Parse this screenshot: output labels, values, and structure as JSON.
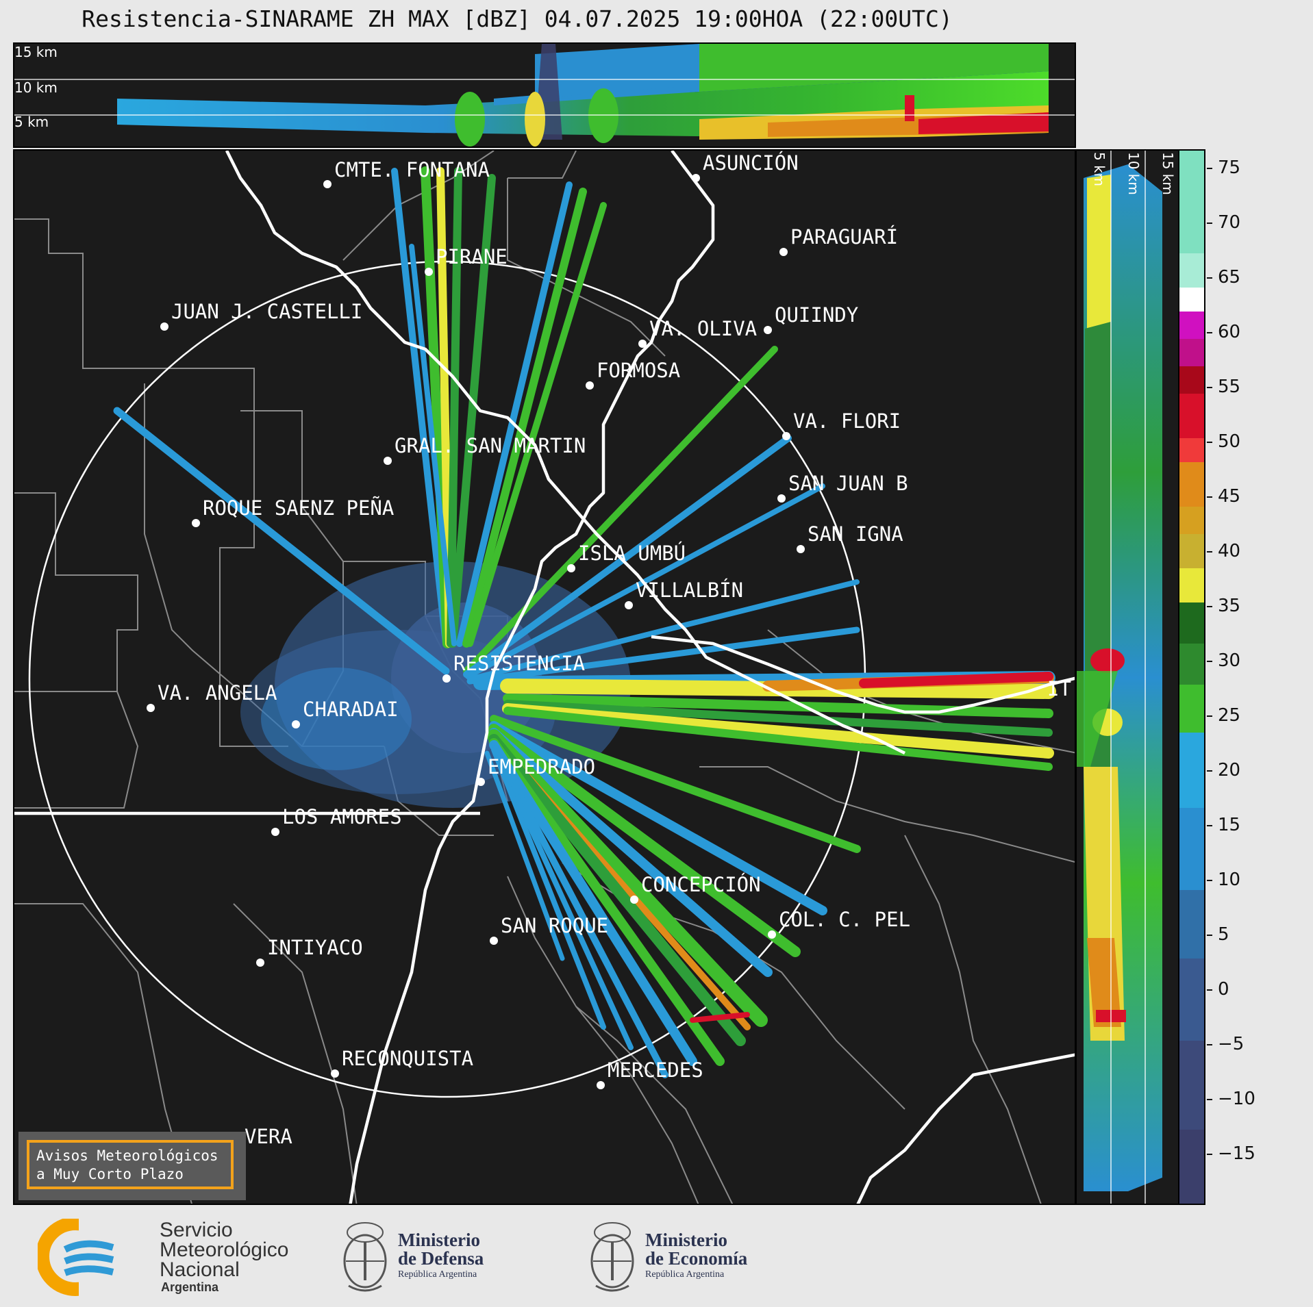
{
  "title": "Resistencia-SINARAME ZH MAX [dBZ] 04.07.2025 19:00HOA (22:00UTC)",
  "top_panel": {
    "height_labels": [
      "15 km",
      "10 km",
      "5 km"
    ]
  },
  "right_panel": {
    "height_labels": [
      "5 km",
      "10 km",
      "15 km"
    ]
  },
  "cities": [
    {
      "name": "CMTE. FONTANA"
    },
    {
      "name": "ASUNCIÓN"
    },
    {
      "name": "PARAGUARÍ"
    },
    {
      "name": "PIRANE"
    },
    {
      "name": "JUAN J. CASTELLI"
    },
    {
      "name": "VA. OLIVA"
    },
    {
      "name": "QUIINDY"
    },
    {
      "name": "FORMOSA"
    },
    {
      "name": "VA. FLORI"
    },
    {
      "name": "GRAL. SAN MARTIN"
    },
    {
      "name": "SAN JUAN B"
    },
    {
      "name": "ROQUE SAENZ PEÑA"
    },
    {
      "name": "SAN IGNA"
    },
    {
      "name": "ISLA UMBÚ"
    },
    {
      "name": "VILLALBÍN"
    },
    {
      "name": "RESISTENCIA"
    },
    {
      "name": "VA. ANGELA"
    },
    {
      "name": "CHARADAI"
    },
    {
      "name": "IT"
    },
    {
      "name": "EMPEDRADO"
    },
    {
      "name": "LOS AMORES"
    },
    {
      "name": "CONCEPCIÓN"
    },
    {
      "name": "SAN ROQUE"
    },
    {
      "name": "COL. C. PEL"
    },
    {
      "name": "INTIYACO"
    },
    {
      "name": "RECONQUISTA"
    },
    {
      "name": "MERCEDES"
    },
    {
      "name": "VERA"
    }
  ],
  "colorbar": {
    "unit": "dBZ",
    "ticks": [
      "75",
      "70",
      "65",
      "60",
      "55",
      "50",
      "45",
      "40",
      "35",
      "30",
      "25",
      "20",
      "15",
      "10",
      "5",
      "0",
      "−5",
      "−10",
      "−15"
    ],
    "range": [
      -20,
      77
    ],
    "colors": {
      "low": "#3b3f6b",
      "blue": "#2f8fd0",
      "green": "#2e9e2e",
      "yellow": "#e8e83a",
      "orange": "#e08b1a",
      "red": "#d8102a",
      "magenta": "#c0108a",
      "white": "#ffffff",
      "mint": "#7fe0c0"
    }
  },
  "notice": {
    "line1": "Avisos Meteorológicos",
    "line2": "a Muy Corto Plazo"
  },
  "footer": {
    "smn": {
      "line1": "Servicio",
      "line2": "Meteorológico",
      "line3": "Nacional",
      "line4": "Argentina"
    },
    "defensa": {
      "line1": "Ministerio",
      "line2": "de Defensa",
      "line3": "República Argentina"
    },
    "economia": {
      "line1": "Ministerio",
      "line2": "de Economía",
      "line3": "República Argentina"
    }
  }
}
